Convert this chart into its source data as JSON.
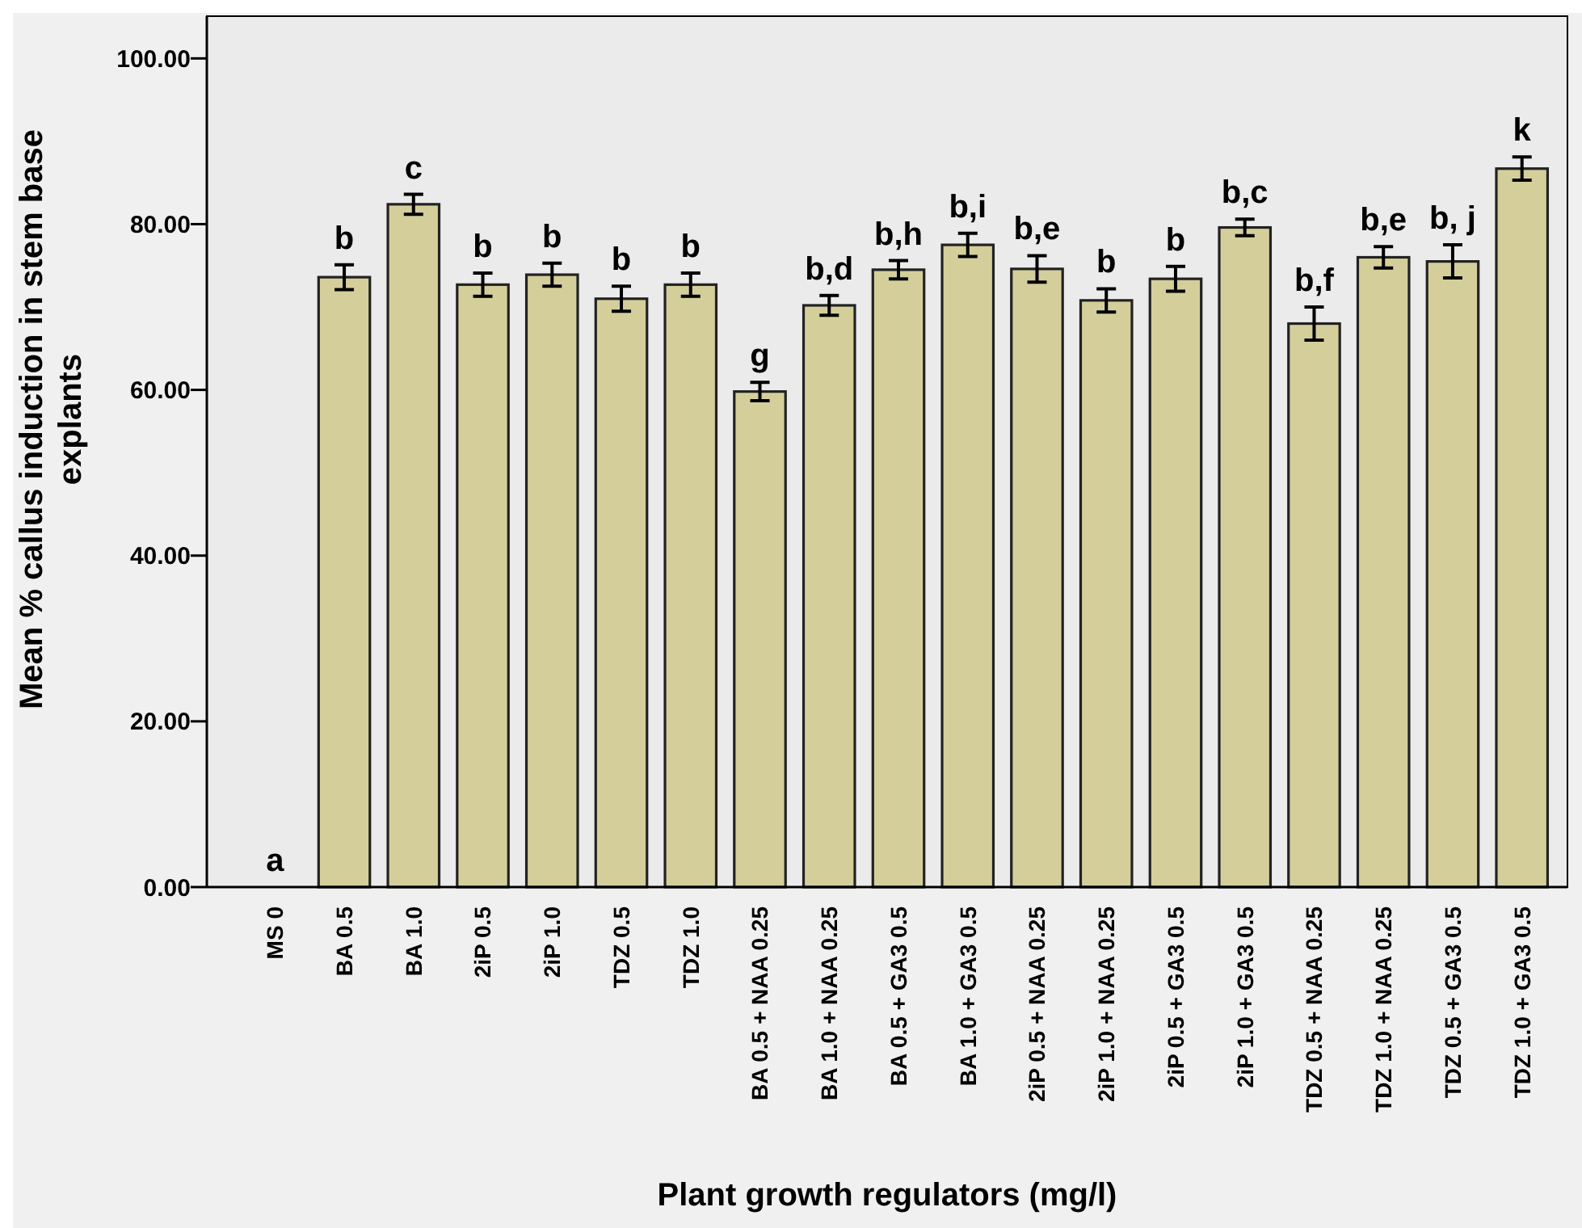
{
  "chart_data": {
    "type": "bar",
    "xlabel": "Plant growth regulators (mg/l)",
    "ylabel": "Mean % callus induction in stem base explants",
    "categories": [
      "MS 0",
      "BA 0.5",
      "BA 1.0",
      "2iP 0.5",
      "2iP 1.0",
      "TDZ 0.5",
      "TDZ 1.0",
      "BA 0.5 + NAA 0.25",
      "BA 1.0 + NAA 0.25",
      "BA 0.5 + GA3 0.5",
      "BA 1.0 + GA3 0.5",
      "2iP 0.5 + NAA 0.25",
      "2iP 1.0 + NAA 0.25",
      "2iP 0.5 + GA3 0.5",
      "2iP 1.0 + GA3 0.5",
      "TDZ 0.5 + NAA 0.25",
      "TDZ 1.0 + NAA 0.25",
      "TDZ 0.5 + GA3 0.5",
      "TDZ 1.0 + GA3 0.5"
    ],
    "values": [
      0,
      73.6,
      82.4,
      72.7,
      73.9,
      71.0,
      72.7,
      59.8,
      70.2,
      74.5,
      77.5,
      74.6,
      70.8,
      73.4,
      79.6,
      68.0,
      76.0,
      75.5,
      86.7
    ],
    "errors": [
      null,
      1.5,
      1.2,
      1.4,
      1.4,
      1.5,
      1.4,
      1.1,
      1.2,
      1.1,
      1.4,
      1.6,
      1.4,
      1.5,
      1.0,
      2.0,
      1.3,
      2.0,
      1.4
    ],
    "color": "#d4cf9a",
    "ylim": [
      0,
      105.1
    ],
    "yticks": [
      {
        "value": 0,
        "label": "0.00"
      },
      {
        "value": 20,
        "label": "20.00"
      },
      {
        "value": 40,
        "label": "40.00"
      },
      {
        "value": 60,
        "label": "60.00"
      },
      {
        "value": 80,
        "label": "80.00"
      },
      {
        "value": 100,
        "label": "100.00"
      }
    ],
    "grid": false,
    "annotations": [
      {
        "text": "a",
        "x": "MS 0",
        "y": 0
      },
      {
        "text": "b",
        "x": "BA 0.5",
        "y": 75.1
      },
      {
        "text": "c",
        "x": "BA 1.0",
        "y": 83.6
      },
      {
        "text": "b",
        "x": "2iP 0.5",
        "y": 74.1
      },
      {
        "text": "b",
        "x": "2iP 1.0",
        "y": 75.3
      },
      {
        "text": "b",
        "x": "TDZ 0.5",
        "y": 72.5
      },
      {
        "text": "b",
        "x": "TDZ 1.0",
        "y": 74.1
      },
      {
        "text": "g",
        "x": "BA 0.5 + NAA 0.25",
        "y": 60.9
      },
      {
        "text": "b,d",
        "x": "BA 1.0 + NAA 0.25",
        "y": 71.4
      },
      {
        "text": "b,h",
        "x": "BA 0.5 + GA3 0.5",
        "y": 75.6
      },
      {
        "text": "b,i",
        "x": "BA 1.0 + GA3 0.5",
        "y": 78.9
      },
      {
        "text": "b,e",
        "x": "2iP 0.5 + NAA 0.25",
        "y": 76.2
      },
      {
        "text": "b",
        "x": "2iP 1.0 + NAA 0.25",
        "y": 72.2
      },
      {
        "text": "b",
        "x": "2iP 0.5 + GA3 0.5",
        "y": 74.9
      },
      {
        "text": "b,c",
        "x": "2iP 1.0 + GA3 0.5",
        "y": 80.6
      },
      {
        "text": "b,f",
        "x": "TDZ 0.5 + NAA 0.25",
        "y": 70.0
      },
      {
        "text": "b,e",
        "x": "TDZ 1.0 + NAA 0.25",
        "y": 77.3
      },
      {
        "text": "b, j",
        "x": "TDZ 0.5 + GA3 0.5",
        "y": 77.5
      },
      {
        "text": "k",
        "x": "TDZ 1.0 + GA3 0.5",
        "y": 88.1
      }
    ]
  }
}
